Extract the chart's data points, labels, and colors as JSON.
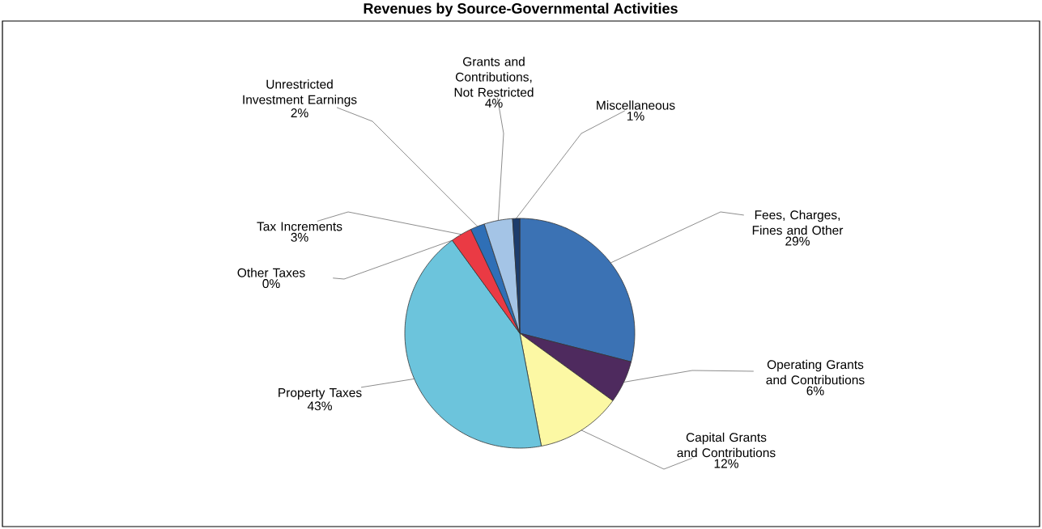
{
  "chart_data": {
    "type": "pie",
    "title": "Revenues by Source-Governmental Activities",
    "categories": [
      "Fees, Charges, Fines and Other",
      "Operating Grants and Contributions",
      "Capital Grants and Contributions",
      "Property Taxes",
      "Other Taxes",
      "Tax Increments",
      "Unrestricted Investment Earnings",
      "Grants and Contributions, Not Restricted",
      "Miscellaneous"
    ],
    "values": [
      29,
      6,
      12,
      43,
      0,
      3,
      2,
      4,
      1
    ],
    "value_labels": [
      "29%",
      "6%",
      "12%",
      "43%",
      "0%",
      "3%",
      "2%",
      "4%",
      "1%"
    ],
    "colors": [
      "#3b72b4",
      "#4e2a5e",
      "#fcf8a4",
      "#6cc4dc",
      "#7ab8d8",
      "#ea3a44",
      "#2f6fb6",
      "#a4c4e6",
      "#1c3c6c"
    ]
  }
}
